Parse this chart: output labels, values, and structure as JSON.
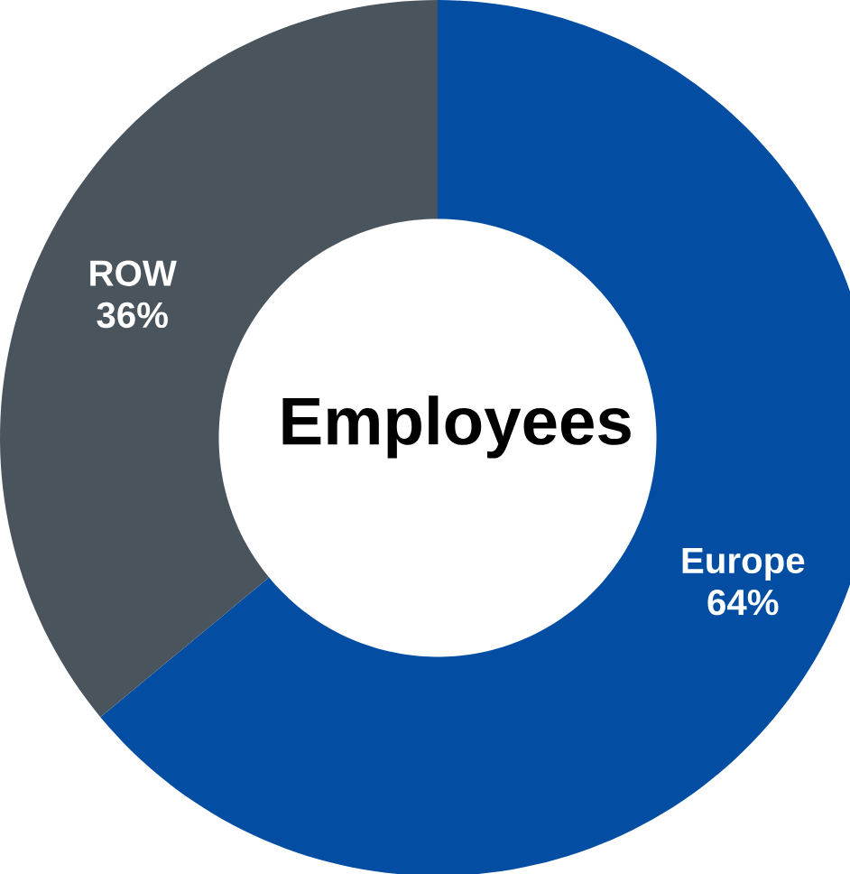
{
  "chart_data": {
    "type": "donut",
    "title": "Employees",
    "categories": [
      "Europe",
      "ROW"
    ],
    "values": [
      64,
      36
    ],
    "value_labels": [
      "64%",
      "36%"
    ],
    "colors": [
      "#034ea2",
      "#4a545c"
    ]
  }
}
